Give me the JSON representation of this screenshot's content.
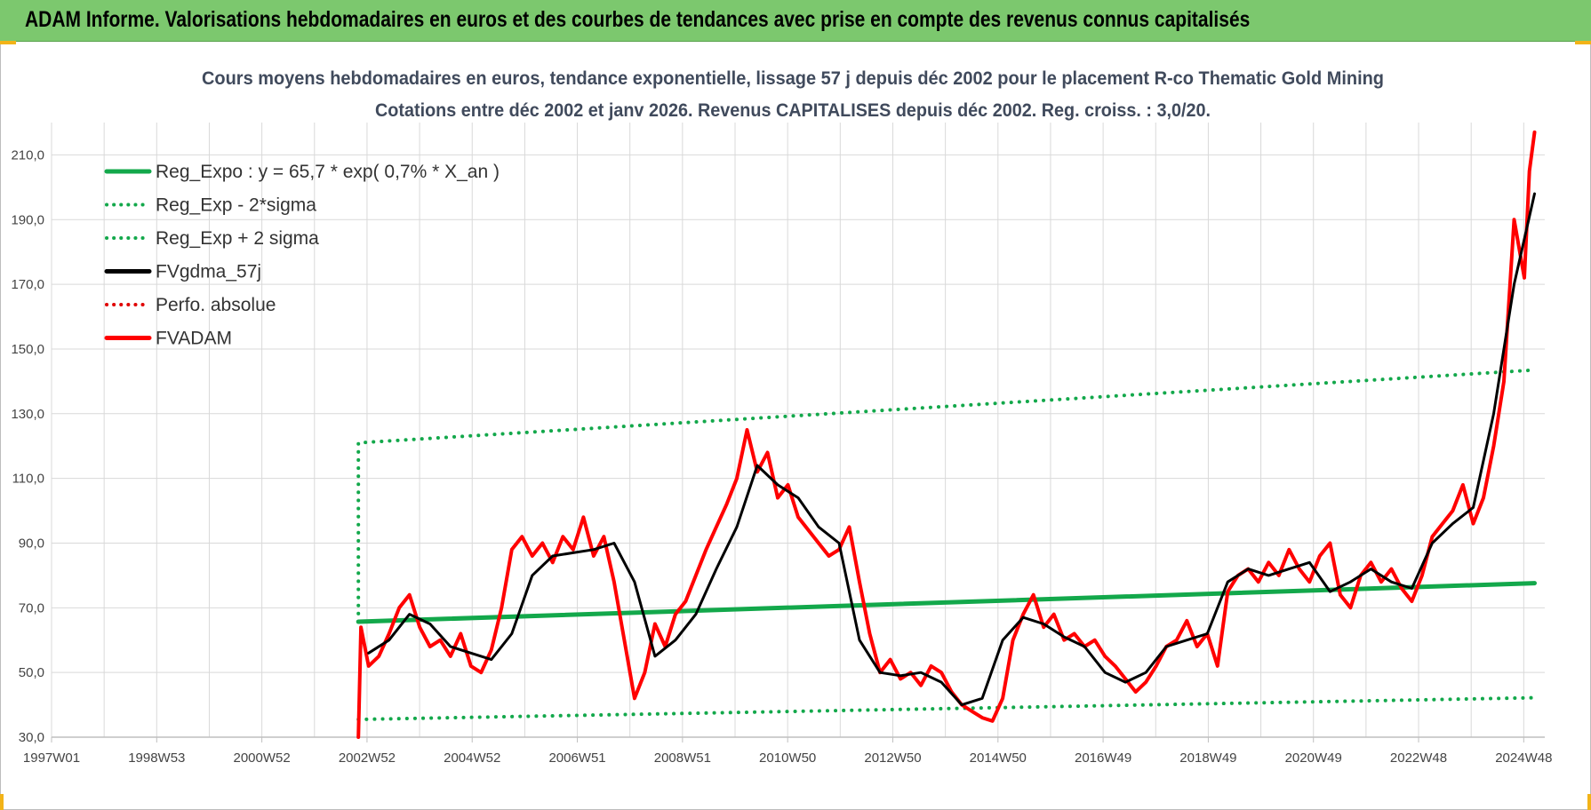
{
  "banner": {
    "title": "ADAM Informe. Valorisations hebdomadaires en euros et des courbes de tendances avec prise en compte des revenus connus capitalisés",
    "background": "#7cc86e"
  },
  "chart_data": {
    "type": "line",
    "title": "Cours moyens hebdomadaires en euros, tendance exponentielle, lissage 57 j depuis déc 2002 pour le placement R-co Thematic Gold Mining",
    "subtitle": "Cotations entre déc 2002 et janv 2026. Revenus CAPITALISES depuis déc 2002. Reg. croiss. : 3,0/20.",
    "xlabel": "",
    "ylabel": "",
    "x_tick_labels": [
      "1997W01",
      "1998W53",
      "2000W52",
      "2002W52",
      "2004W52",
      "2006W51",
      "2008W51",
      "2010W50",
      "2012W50",
      "2014W50",
      "2016W49",
      "2018W49",
      "2020W49",
      "2022W48",
      "2024W48"
    ],
    "x_range": [
      1997.0,
      2026.2
    ],
    "ylim": [
      30,
      220
    ],
    "y_ticks": [
      30,
      50,
      70,
      90,
      110,
      130,
      150,
      170,
      190,
      210
    ],
    "y_tick_labels": [
      "30,0",
      "50,0",
      "70,0",
      "90,0",
      "110,0",
      "130,0",
      "150,0",
      "170,0",
      "190,0",
      "210,0"
    ],
    "grid": true,
    "legend_position": "top-left",
    "series": [
      {
        "name": "Reg_Expo : y = 65,7 * exp( 0,7% *  X_an )",
        "color": "#13a84b",
        "style": "solid",
        "width": 5,
        "x": [
          2003.0,
          2026.0
        ],
        "y": [
          65.7,
          77.6
        ]
      },
      {
        "name": "Reg_Exp - 2*sigma",
        "color": "#13a84b",
        "style": "dotted",
        "width": 4,
        "x": [
          2003.0,
          2026.0
        ],
        "y": [
          35.5,
          42.2
        ]
      },
      {
        "name": "Reg_Exp + 2 sigma",
        "color": "#13a84b",
        "style": "dotted",
        "width": 4,
        "x": [
          2003.0,
          2003.0,
          2026.0
        ],
        "y": [
          65.7,
          121.0,
          143.5
        ]
      },
      {
        "name": "FVgdma_57j",
        "color": "#000000",
        "style": "solid",
        "width": 3,
        "x": [
          2003.2,
          2003.6,
          2004.0,
          2004.4,
          2004.8,
          2005.2,
          2005.6,
          2006.0,
          2006.4,
          2006.8,
          2007.2,
          2007.6,
          2008.0,
          2008.4,
          2008.8,
          2009.2,
          2009.6,
          2010.0,
          2010.4,
          2010.8,
          2011.2,
          2011.6,
          2012.0,
          2012.4,
          2012.8,
          2013.2,
          2013.6,
          2014.0,
          2014.4,
          2014.8,
          2015.2,
          2015.6,
          2016.0,
          2016.4,
          2016.8,
          2017.2,
          2017.6,
          2018.0,
          2018.4,
          2018.8,
          2019.2,
          2019.6,
          2020.0,
          2020.4,
          2020.8,
          2021.2,
          2021.6,
          2022.0,
          2022.4,
          2022.8,
          2023.2,
          2023.6,
          2024.0,
          2024.4,
          2024.8,
          2025.2,
          2025.6,
          2026.0
        ],
        "y": [
          56,
          60,
          68,
          65,
          58,
          56,
          54,
          62,
          80,
          86,
          87,
          88,
          90,
          78,
          55,
          60,
          68,
          82,
          95,
          114,
          108,
          104,
          95,
          90,
          60,
          50,
          49,
          50,
          47,
          40,
          42,
          60,
          67,
          65,
          61,
          58,
          50,
          47,
          50,
          58,
          60,
          62,
          78,
          82,
          80,
          82,
          84,
          75,
          78,
          82,
          78,
          76,
          90,
          96,
          101,
          130,
          170,
          198
        ]
      },
      {
        "name": "Perfo. absolue",
        "color": "#e00000",
        "style": "dotted",
        "width": 3,
        "x": [],
        "y": []
      },
      {
        "name": "FVADAM",
        "color": "#ff0000",
        "style": "solid",
        "width": 4,
        "x": [
          2003.0,
          2003.05,
          2003.2,
          2003.4,
          2003.6,
          2003.8,
          2004.0,
          2004.2,
          2004.4,
          2004.6,
          2004.8,
          2005.0,
          2005.2,
          2005.4,
          2005.6,
          2005.8,
          2006.0,
          2006.2,
          2006.4,
          2006.6,
          2006.8,
          2007.0,
          2007.2,
          2007.4,
          2007.6,
          2007.8,
          2008.0,
          2008.2,
          2008.4,
          2008.6,
          2008.8,
          2009.0,
          2009.2,
          2009.4,
          2009.6,
          2009.8,
          2010.0,
          2010.2,
          2010.4,
          2010.6,
          2010.8,
          2011.0,
          2011.2,
          2011.4,
          2011.6,
          2011.8,
          2012.0,
          2012.2,
          2012.4,
          2012.6,
          2012.8,
          2013.0,
          2013.2,
          2013.4,
          2013.6,
          2013.8,
          2014.0,
          2014.2,
          2014.4,
          2014.6,
          2014.8,
          2015.0,
          2015.2,
          2015.4,
          2015.6,
          2015.8,
          2016.0,
          2016.2,
          2016.4,
          2016.6,
          2016.8,
          2017.0,
          2017.2,
          2017.4,
          2017.6,
          2017.8,
          2018.0,
          2018.2,
          2018.4,
          2018.6,
          2018.8,
          2019.0,
          2019.2,
          2019.4,
          2019.6,
          2019.8,
          2020.0,
          2020.2,
          2020.4,
          2020.6,
          2020.8,
          2021.0,
          2021.2,
          2021.4,
          2021.6,
          2021.8,
          2022.0,
          2022.2,
          2022.4,
          2022.6,
          2022.8,
          2023.0,
          2023.2,
          2023.4,
          2023.6,
          2023.8,
          2024.0,
          2024.2,
          2024.4,
          2024.6,
          2024.8,
          2025.0,
          2025.2,
          2025.4,
          2025.6,
          2025.8,
          2025.9,
          2026.0
        ],
        "y": [
          30,
          64,
          52,
          55,
          62,
          70,
          74,
          64,
          58,
          60,
          55,
          62,
          52,
          50,
          57,
          70,
          88,
          92,
          86,
          90,
          84,
          92,
          88,
          98,
          86,
          92,
          78,
          60,
          42,
          50,
          65,
          58,
          68,
          72,
          80,
          88,
          95,
          102,
          110,
          125,
          112,
          118,
          104,
          108,
          98,
          94,
          90,
          86,
          88,
          95,
          78,
          62,
          50,
          54,
          48,
          50,
          46,
          52,
          50,
          44,
          40,
          38,
          36,
          35,
          42,
          60,
          68,
          74,
          64,
          68,
          60,
          62,
          58,
          60,
          55,
          52,
          48,
          44,
          47,
          52,
          58,
          60,
          66,
          58,
          62,
          52,
          75,
          80,
          82,
          78,
          84,
          80,
          88,
          82,
          78,
          86,
          90,
          74,
          70,
          80,
          84,
          78,
          82,
          76,
          72,
          80,
          92,
          96,
          100,
          108,
          96,
          104,
          120,
          140,
          190,
          172,
          205,
          217
        ]
      }
    ]
  }
}
